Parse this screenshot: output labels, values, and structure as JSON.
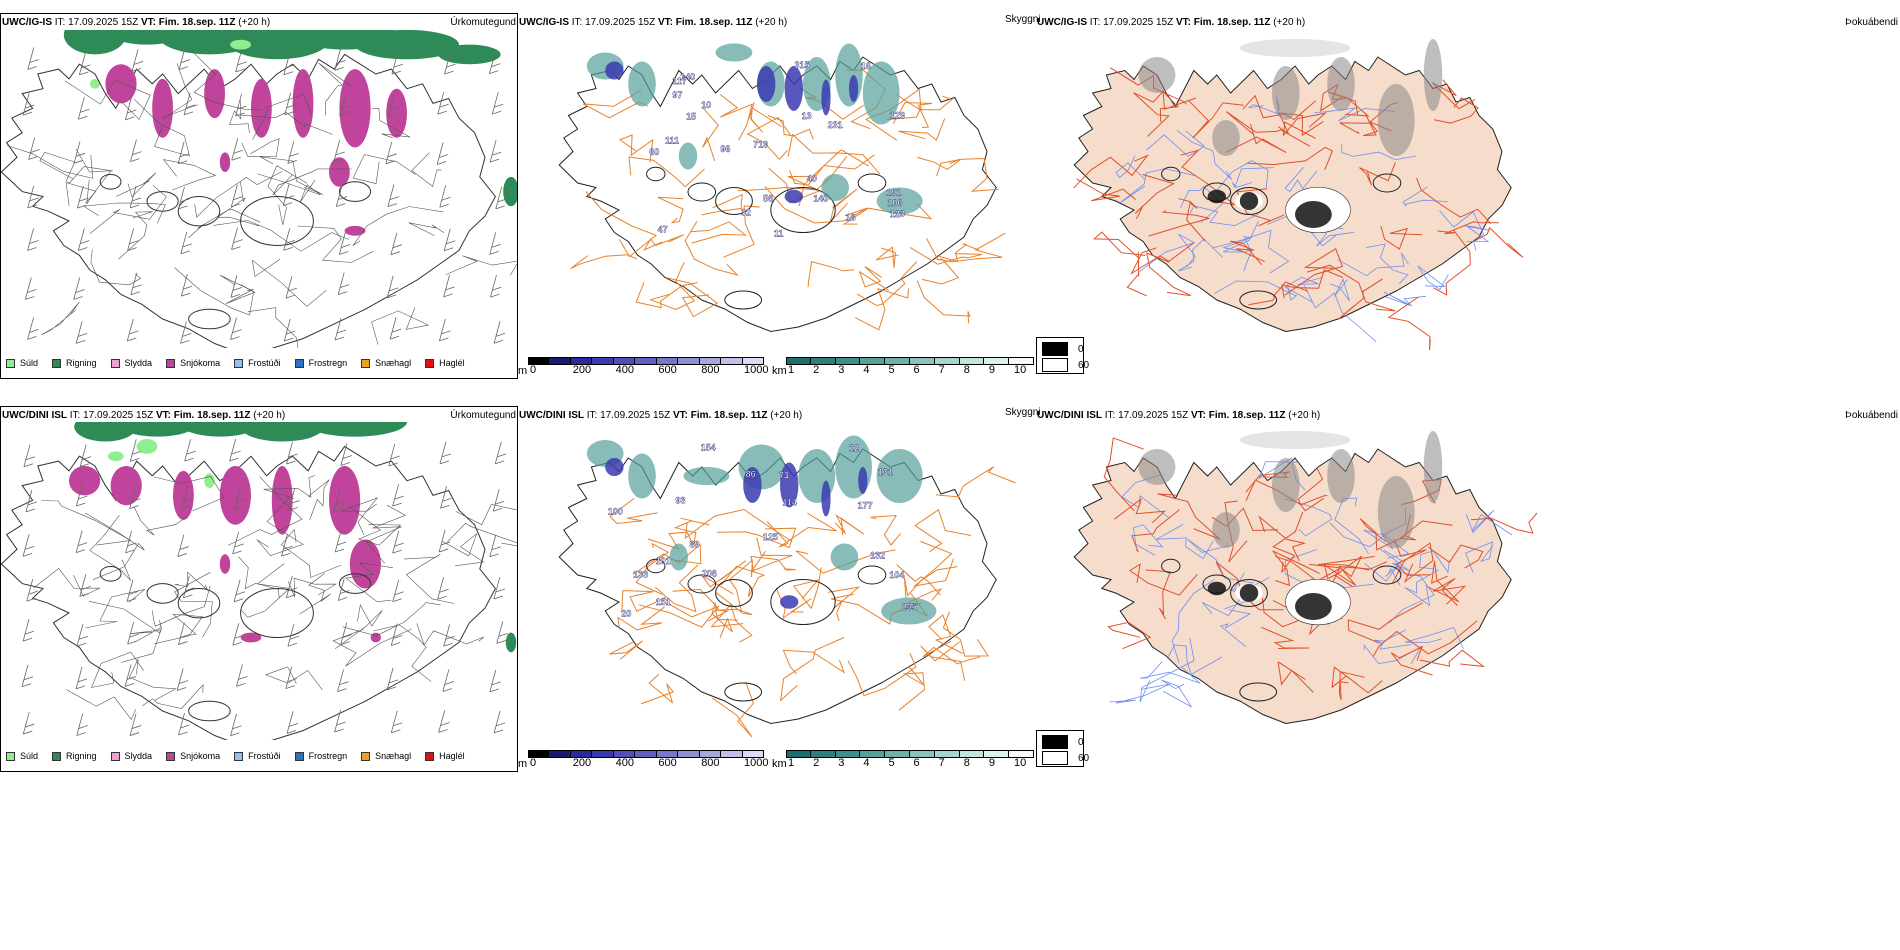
{
  "rows": [
    {
      "model_short": "UWC/IG-IS",
      "panels": {
        "precip": {
          "model": "UWC/IG-IS",
          "it_label": " IT: 17.09.2025 15Z ",
          "vt_label": "VT: Fim. 18.sep. 11Z",
          "lead": " (+20 h)",
          "title": "Úrkomutegund"
        },
        "cloud": {
          "model": "UWC/IG-IS",
          "it_label": " IT: 17.09.2025 15Z ",
          "vt_label": "VT: Fim. 18.sep. 11Z",
          "lead": " (+20 h)",
          "title": "Skyggni"
        },
        "fog": {
          "model": "UWC/IG-IS",
          "it_label": " IT: 17.09.2025 15Z ",
          "vt_label": "VT: Fim. 18.sep. 11Z",
          "lead": " (+20 h)",
          "title": "Þokuábendi"
        }
      },
      "cloud_labels": [
        "140",
        "111",
        "129",
        "32",
        "123",
        "97",
        "10",
        "16",
        "11",
        "13",
        "15",
        "47",
        "231",
        "315",
        "719",
        "191",
        "60",
        "18",
        "56",
        "140",
        "96",
        "106",
        "117",
        "40"
      ]
    },
    {
      "model_short": "UWC/DINI ISL",
      "panels": {
        "precip": {
          "model": "UWC/DINI ISL",
          "it_label": " IT: 17.09.2025 15Z ",
          "vt_label": "VT: Fim. 18.sep. 11Z",
          "lead": " (+20 h)",
          "title": "Úrkomutegund"
        },
        "cloud": {
          "model": "UWC/DINI ISL",
          "it_label": " IT: 17.09.2025 15Z ",
          "vt_label": "VT: Fim. 18.sep. 11Z",
          "lead": " (+20 h)",
          "title": "Skyggni"
        },
        "fog": {
          "model": "UWC/DINI ISL",
          "it_label": " IT: 17.09.2025 15Z ",
          "vt_label": "VT: Fim. 18.sep. 11Z",
          "lead": " (+20 h)",
          "title": "Þokuábendi"
        }
      },
      "cloud_labels": [
        "104",
        "131",
        "93",
        "132",
        "177",
        "206",
        "133",
        "125",
        "89",
        "100",
        "154",
        "86",
        "245",
        "73",
        "151",
        "101",
        "114",
        "12",
        "20"
      ]
    }
  ],
  "precip_legend": [
    {
      "label": "Súld",
      "color": "#90ee90"
    },
    {
      "label": "Rigning",
      "color": "#2e8b57"
    },
    {
      "label": "Slydda",
      "color": "#f0a0d0"
    },
    {
      "label": "Snjókoma",
      "color": "#c0449c"
    },
    {
      "label": "Frostúði",
      "color": "#90c0f0"
    },
    {
      "label": "Frostregn",
      "color": "#3070c0"
    },
    {
      "label": "Snæhagl",
      "color": "#f0a020"
    },
    {
      "label": "Haglél",
      "color": "#e01010"
    }
  ],
  "ceiling_bar": {
    "unit": "m",
    "ticks": [
      "0",
      "200",
      "400",
      "600",
      "800",
      "1000"
    ],
    "colors": [
      "#000000",
      "#1a1a6e",
      "#2a2a9a",
      "#3b3bb0",
      "#5050b8",
      "#6060c0",
      "#7878c8",
      "#9090d0",
      "#a8a8dc",
      "#c0c0e8",
      "#dcdcf4"
    ]
  },
  "vis_bar": {
    "unit": "km",
    "ticks": [
      "1",
      "2",
      "3",
      "4",
      "5",
      "6",
      "7",
      "8",
      "9",
      "10"
    ],
    "colors": [
      "#1e6e6e",
      "#2e7e7c",
      "#3e8e8a",
      "#56a09a",
      "#70b0aa",
      "#8cc2bc",
      "#a8d4ce",
      "#c4e4e0",
      "#dcf0ee",
      "#f4fbfa"
    ]
  },
  "fog_legend": [
    {
      "label": "0",
      "color": "#000000"
    },
    {
      "label": "60",
      "color": "#ffffff"
    }
  ],
  "colors": {
    "road": "#e8822a",
    "fog_land": "#f5dccb",
    "fog_road": "#e0502a",
    "fog_river": "#7090f0",
    "rain": "#2e8b57",
    "snow": "#c0449c",
    "drizzle": "#90ee90"
  },
  "icons": {
    "wind_barbs": "wind-barb-icon"
  }
}
